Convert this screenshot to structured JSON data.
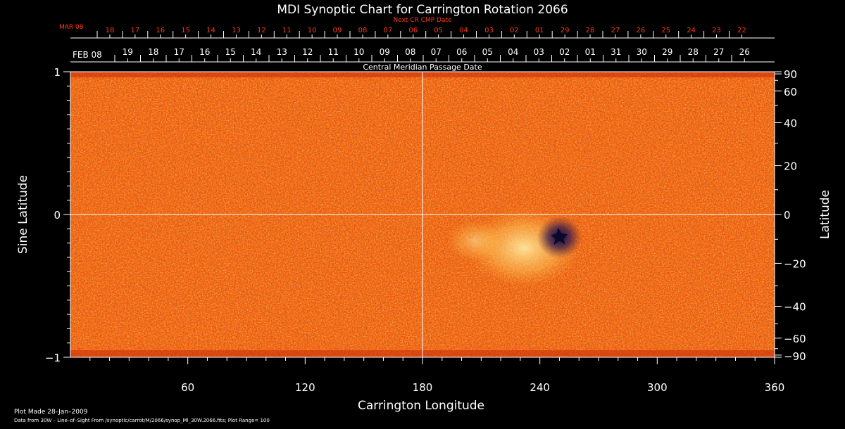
{
  "chart_data": {
    "type": "heatmap",
    "title": "MDI Synoptic Chart for Carrington Rotation 2066",
    "xlabel": "Carrington Longitude",
    "ylabel_left": "Sine Latitude",
    "ylabel_right": "Latitude",
    "xlim": [
      0,
      360
    ],
    "ylim": [
      -1,
      1
    ],
    "x_ticks": [
      60,
      120,
      180,
      240,
      300,
      360
    ],
    "y_ticks_left": [
      {
        "value": 1,
        "label": "1"
      },
      {
        "value": 0,
        "label": "0"
      },
      {
        "value": -1,
        "label": "−1"
      }
    ],
    "y_ticks_right": [
      {
        "lat": 90,
        "label": "90"
      },
      {
        "lat": 60,
        "label": "60"
      },
      {
        "lat": 40,
        "label": "40"
      },
      {
        "lat": 20,
        "label": "20"
      },
      {
        "lat": 0,
        "label": "0"
      },
      {
        "lat": -20,
        "label": "−20"
      },
      {
        "lat": -40,
        "label": "−40"
      },
      {
        "lat": -60,
        "label": "−60"
      },
      {
        "lat": -90,
        "label": "−90"
      }
    ],
    "grid_lines": {
      "longitude": 180,
      "sine_latitude": 0
    },
    "active_region": {
      "longitude": 250,
      "sine_latitude": -0.16
    },
    "colors": {
      "field_base": "#f05a0a",
      "positive": "#fff08a",
      "negative": "#1a1040"
    }
  },
  "top_axes": {
    "next_cr": {
      "caption": "Next CR CMP Date",
      "month_label": "MAR 08",
      "day_labels": [
        "18",
        "17",
        "16",
        "15",
        "14",
        "13",
        "12",
        "11",
        "10",
        "09",
        "08",
        "07",
        "06",
        "05",
        "04",
        "03",
        "02",
        "01",
        "29",
        "28",
        "27",
        "26",
        "25",
        "24",
        "23",
        "22"
      ],
      "color": "#ff3a1a"
    },
    "current": {
      "caption": "Central Meridian Passage Date",
      "month_label": "FEB 08",
      "day_labels": [
        "19",
        "18",
        "17",
        "16",
        "15",
        "14",
        "13",
        "12",
        "11",
        "10",
        "09",
        "08",
        "07",
        "06",
        "05",
        "04",
        "03",
        "02",
        "01",
        "31",
        "30",
        "29",
        "28",
        "27",
        "26"
      ],
      "color": "#ffffff"
    }
  },
  "footer": {
    "plot_made": "Plot Made 28–Jan–2009",
    "data_from": "Data from 30W – Line–of–Sight From /synoptic/carrot/M/2066/synop_Ml_30W.2066.fits; Plot Range=  100"
  }
}
